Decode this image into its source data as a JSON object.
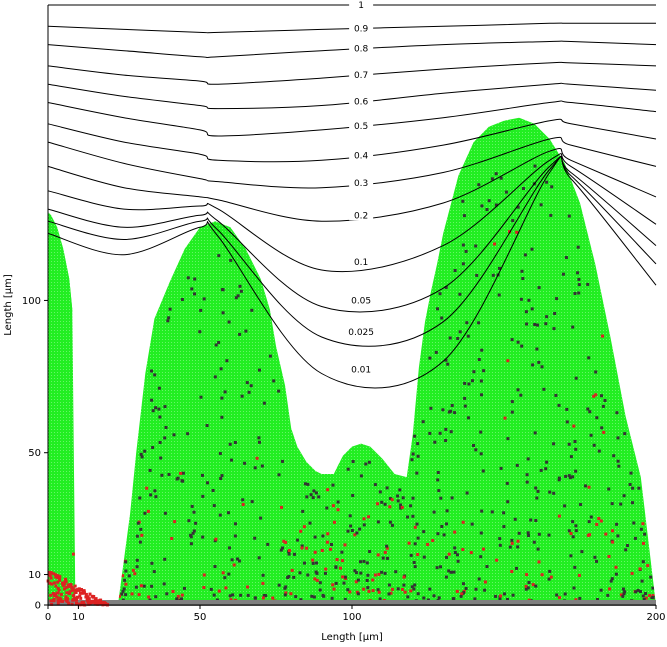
{
  "chart_data": {
    "type": "scatter",
    "title": "",
    "xlabel": "Length [µm]",
    "ylabel": "Length [µm]",
    "xlim": [
      0,
      200
    ],
    "ylim": [
      0,
      197
    ],
    "x_ticks": [
      {
        "value": 0,
        "label": "0"
      },
      {
        "value": 10,
        "label": "10"
      },
      {
        "value": 50,
        "label": "50"
      },
      {
        "value": 100,
        "label": "100"
      },
      {
        "value": 200,
        "label": "200"
      }
    ],
    "y_ticks": [
      {
        "value": 0,
        "label": "0"
      },
      {
        "value": 10,
        "label": "10"
      },
      {
        "value": 50,
        "label": "50"
      },
      {
        "value": 100,
        "label": "100"
      }
    ],
    "substrate_color": "#808080",
    "colony_color": "#22ee22",
    "inactive_cell_color": "#333333",
    "red_cell_color": "#dd2222",
    "colony_profile": {
      "x": [
        0,
        1,
        3,
        5,
        7,
        8,
        9,
        10,
        13,
        15,
        17,
        20,
        23,
        25,
        27,
        29,
        32,
        35,
        40,
        45,
        50,
        55,
        60,
        65,
        70,
        73,
        75,
        78,
        80,
        82,
        85,
        88,
        90,
        92,
        94,
        95,
        97,
        100,
        103,
        106,
        110,
        114,
        118,
        120,
        122,
        124,
        126,
        128,
        130,
        135,
        140,
        145,
        150,
        155,
        160,
        165,
        170,
        175,
        180,
        185,
        190,
        195,
        200
      ],
      "y": [
        129,
        128,
        124,
        117,
        107,
        97,
        0,
        0,
        0,
        0,
        0,
        0,
        0,
        15,
        30,
        50,
        76,
        94,
        106,
        117,
        124,
        126,
        124,
        117,
        107,
        97,
        85,
        72,
        58,
        52,
        47,
        44,
        43,
        43,
        43,
        45,
        49,
        52,
        53,
        52,
        48,
        43,
        42,
        56,
        78,
        93,
        103,
        112,
        122,
        141,
        152,
        157,
        159,
        160,
        158,
        153,
        145,
        132,
        112,
        88,
        62,
        42,
        0
      ]
    },
    "left_strip": {
      "x": [
        0,
        1,
        3,
        5,
        7,
        8,
        7,
        6,
        6
      ],
      "y": [
        129,
        128,
        124,
        117,
        107,
        97,
        85,
        70,
        52
      ]
    },
    "contours": [
      {
        "label": "1",
        "y_values": [
          197,
          197,
          197,
          197,
          197,
          197,
          197,
          197,
          197
        ]
      },
      {
        "label": "0.9",
        "y_values": [
          190,
          189,
          188,
          188,
          189,
          190,
          191,
          191,
          191
        ]
      },
      {
        "label": "0.8",
        "y_values": [
          184,
          182,
          180,
          180,
          182,
          184,
          185,
          185,
          184
        ]
      },
      {
        "label": "0.7",
        "y_values": [
          177,
          174,
          172,
          171,
          173,
          176,
          178,
          178,
          177
        ]
      },
      {
        "label": "0.6",
        "y_values": [
          171,
          167,
          164,
          163,
          164,
          168,
          171,
          171,
          169
        ]
      },
      {
        "label": "0.5",
        "y_values": [
          165,
          160,
          156,
          154,
          156,
          160,
          165,
          165,
          162
        ]
      },
      {
        "label": "0.4",
        "y_values": [
          158,
          152,
          148,
          146,
          146,
          151,
          159,
          158,
          153
        ]
      },
      {
        "label": "0.3",
        "y_values": [
          152,
          145,
          140,
          139,
          137,
          142,
          153,
          151,
          144
        ]
      },
      {
        "label": "0.2",
        "y_values": [
          144,
          137,
          134,
          133,
          126,
          132,
          149,
          146,
          134
        ]
      },
      {
        "label": "0.1",
        "y_values": [
          136,
          130,
          131,
          130,
          110,
          118,
          146,
          144,
          125
        ]
      },
      {
        "label": "0.05",
        "y_values": [
          130,
          124,
          128,
          126,
          98,
          104,
          144,
          142,
          118
        ]
      },
      {
        "label": "0.025",
        "y_values": [
          126,
          120,
          126,
          123,
          88,
          93,
          143,
          141,
          112
        ]
      },
      {
        "label": "0.01",
        "y_values": [
          122,
          115,
          124,
          121,
          76,
          80,
          142,
          140,
          105
        ]
      }
    ],
    "contour_x": [
      0,
      25,
      50,
      56,
      90,
      130,
      165,
      172,
      200
    ],
    "contour_label_x": 103,
    "grid": false,
    "legend": "none"
  }
}
